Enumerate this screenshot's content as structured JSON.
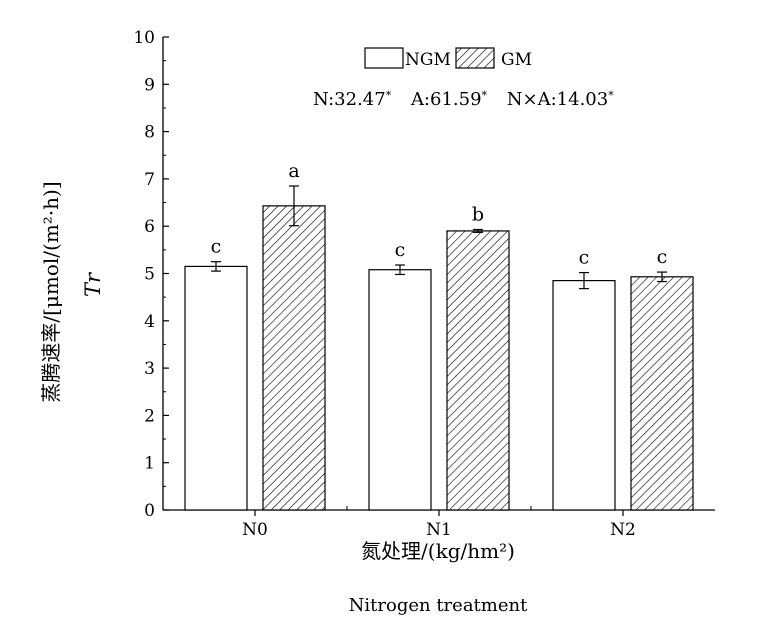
{
  "chart_data": {
    "type": "bar",
    "categories": [
      "N0",
      "N1",
      "N2"
    ],
    "series": [
      {
        "name": "NGM",
        "pattern": "solid-white",
        "values": [
          5.15,
          5.08,
          4.85
        ],
        "errors": [
          0.1,
          0.1,
          0.17
        ],
        "significance": [
          "c",
          "c",
          "c"
        ]
      },
      {
        "name": "GM",
        "pattern": "hatched",
        "values": [
          6.43,
          5.9,
          4.93
        ],
        "errors": [
          0.42,
          0.03,
          0.1
        ],
        "significance": [
          "a",
          "b",
          "c"
        ]
      }
    ],
    "ylim": [
      0,
      10
    ],
    "yticks": [
      "0",
      "1",
      "2",
      "3",
      "4",
      "5",
      "6",
      "7",
      "8",
      "9",
      "10"
    ],
    "ylabel_cn": "蒸腾速率/[μmol/(m²·h)]",
    "ylabel_symbol": "Tr",
    "xlabel_cn": "氮处理/(kg/hm²)",
    "xlabel_en": "Nitrogen treatment",
    "stats": {
      "n_label": "N:32.47",
      "a_label": "A:61.59",
      "nxa_label": "N×A:14.03",
      "sig_mark": "*"
    },
    "legend_position": "top-center",
    "grid": false,
    "colors": {
      "ngm_fill": "#ffffff",
      "gm_hatch": "#000000",
      "axis": "#000000"
    }
  }
}
